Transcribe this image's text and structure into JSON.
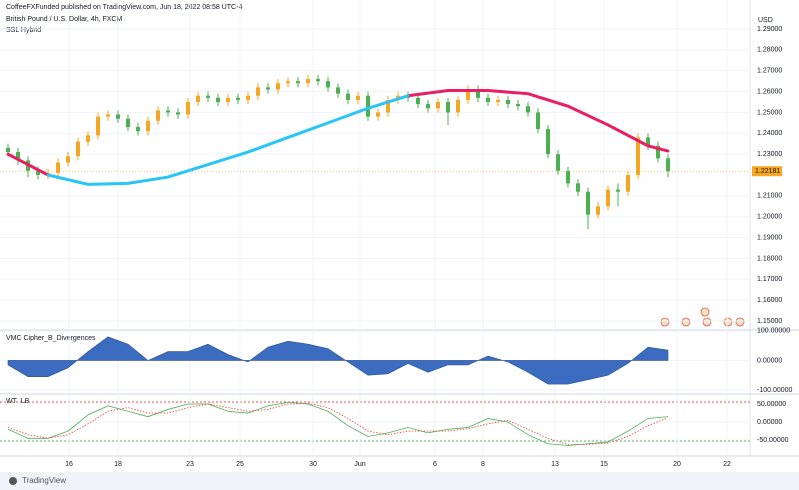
{
  "chart_data": {
    "type": "candlestick",
    "header": "CoffeeFXFunded published on TradingView.com, Jun 18, 2022 08:58 UTC-4",
    "title": "British Pound / U.S. Dollar, 4h, FXCM",
    "subtitle": "SSL Hybrid",
    "currency": "USD",
    "brand": "TradingView",
    "up_color": "#f5a623",
    "down_color": "#4caf50",
    "grid": true,
    "xlim": [
      0,
      75
    ],
    "ylim": [
      1.145,
      1.295
    ],
    "xticks": [
      {
        "value": 6.9,
        "label": "16"
      },
      {
        "value": 11.8,
        "label": "18"
      },
      {
        "value": 19.0,
        "label": "23"
      },
      {
        "value": 24.0,
        "label": "25"
      },
      {
        "value": 31.3,
        "label": "30"
      },
      {
        "value": 36.0,
        "label": "Jun"
      },
      {
        "value": 43.5,
        "label": "6"
      },
      {
        "value": 48.3,
        "label": "8"
      },
      {
        "value": 55.5,
        "label": "13"
      },
      {
        "value": 60.4,
        "label": "15"
      },
      {
        "value": 67.7,
        "label": "20"
      },
      {
        "value": 72.7,
        "label": "22"
      }
    ],
    "yticks": [
      {
        "value": 1.15,
        "label": "1.15000"
      },
      {
        "value": 1.16,
        "label": "1.16000"
      },
      {
        "value": 1.17,
        "label": "1.17000"
      },
      {
        "value": 1.18,
        "label": "1.18000"
      },
      {
        "value": 1.19,
        "label": "1.19000"
      },
      {
        "value": 1.2,
        "label": "1.20000"
      },
      {
        "value": 1.21,
        "label": "1.21000"
      },
      {
        "value": 1.23,
        "label": "1.23000"
      },
      {
        "value": 1.24,
        "label": "1.24000"
      },
      {
        "value": 1.25,
        "label": "1.25000"
      },
      {
        "value": 1.26,
        "label": "1.26000"
      },
      {
        "value": 1.27,
        "label": "1.27000"
      },
      {
        "value": 1.28,
        "label": "1.28000"
      },
      {
        "value": 1.29,
        "label": "1.29000"
      }
    ],
    "x": [
      0.8,
      1.8,
      2.8,
      3.8,
      4.8,
      5.8,
      6.8,
      7.8,
      8.8,
      9.8,
      10.8,
      11.8,
      12.8,
      13.8,
      14.8,
      15.8,
      16.8,
      17.8,
      18.8,
      19.8,
      20.8,
      21.8,
      22.8,
      23.8,
      24.8,
      25.8,
      26.8,
      27.8,
      28.8,
      29.8,
      30.8,
      31.8,
      32.8,
      33.8,
      34.8,
      35.8,
      36.8,
      37.8,
      38.8,
      39.8,
      40.8,
      41.8,
      42.8,
      43.8,
      44.8,
      45.8,
      46.8,
      47.8,
      48.8,
      49.8,
      50.8,
      51.8,
      52.8,
      53.8,
      54.8,
      55.8,
      56.8,
      57.8,
      58.8,
      59.8,
      60.8,
      61.8,
      62.8,
      63.8,
      64.8,
      65.8,
      66.8
    ],
    "open": [
      1.233,
      1.231,
      1.227,
      1.222,
      1.22,
      1.221,
      1.226,
      1.229,
      1.236,
      1.239,
      1.248,
      1.249,
      1.247,
      1.243,
      1.241,
      1.246,
      1.251,
      1.25,
      1.249,
      1.255,
      1.258,
      1.257,
      1.255,
      1.257,
      1.256,
      1.258,
      1.262,
      1.261,
      1.264,
      1.265,
      1.264,
      1.266,
      1.265,
      1.262,
      1.259,
      1.256,
      1.258,
      1.248,
      1.25,
      1.256,
      1.258,
      1.257,
      1.254,
      1.252,
      1.255,
      1.25,
      1.256,
      1.261,
      1.257,
      1.255,
      1.256,
      1.254,
      1.253,
      1.25,
      1.242,
      1.23,
      1.222,
      1.216,
      1.212,
      1.201,
      1.205,
      1.213,
      1.212,
      1.22,
      1.238,
      1.234,
      1.228
    ],
    "high": [
      1.235,
      1.233,
      1.229,
      1.224,
      1.223,
      1.228,
      1.231,
      1.238,
      1.241,
      1.25,
      1.251,
      1.251,
      1.249,
      1.245,
      1.248,
      1.253,
      1.253,
      1.252,
      1.257,
      1.26,
      1.26,
      1.259,
      1.259,
      1.259,
      1.26,
      1.264,
      1.264,
      1.266,
      1.267,
      1.267,
      1.268,
      1.268,
      1.267,
      1.264,
      1.261,
      1.26,
      1.26,
      1.252,
      1.258,
      1.26,
      1.26,
      1.259,
      1.256,
      1.257,
      1.257,
      1.258,
      1.263,
      1.263,
      1.259,
      1.258,
      1.258,
      1.256,
      1.255,
      1.252,
      1.244,
      1.232,
      1.224,
      1.218,
      1.214,
      1.207,
      1.215,
      1.216,
      1.222,
      1.24,
      1.24,
      1.236,
      1.23
    ],
    "low": [
      1.229,
      1.225,
      1.219,
      1.218,
      1.218,
      1.219,
      1.224,
      1.227,
      1.234,
      1.237,
      1.246,
      1.245,
      1.241,
      1.239,
      1.239,
      1.244,
      1.248,
      1.247,
      1.247,
      1.253,
      1.255,
      1.253,
      1.253,
      1.254,
      1.254,
      1.256,
      1.259,
      1.259,
      1.262,
      1.262,
      1.262,
      1.263,
      1.26,
      1.257,
      1.254,
      1.254,
      1.246,
      1.246,
      1.248,
      1.254,
      1.255,
      1.252,
      1.25,
      1.25,
      1.244,
      1.248,
      1.254,
      1.255,
      1.253,
      1.253,
      1.252,
      1.251,
      1.248,
      1.24,
      1.228,
      1.22,
      1.214,
      1.21,
      1.194,
      1.199,
      1.203,
      1.205,
      1.21,
      1.218,
      1.232,
      1.226,
      1.219
    ],
    "close": [
      1.231,
      1.227,
      1.222,
      1.22,
      1.221,
      1.226,
      1.229,
      1.236,
      1.239,
      1.248,
      1.249,
      1.247,
      1.243,
      1.241,
      1.246,
      1.251,
      1.25,
      1.249,
      1.255,
      1.258,
      1.257,
      1.255,
      1.257,
      1.256,
      1.258,
      1.262,
      1.261,
      1.264,
      1.265,
      1.264,
      1.266,
      1.265,
      1.262,
      1.259,
      1.256,
      1.258,
      1.248,
      1.25,
      1.256,
      1.258,
      1.257,
      1.254,
      1.252,
      1.255,
      1.25,
      1.256,
      1.261,
      1.257,
      1.255,
      1.256,
      1.254,
      1.253,
      1.25,
      1.242,
      1.23,
      1.222,
      1.216,
      1.212,
      1.201,
      1.205,
      1.213,
      1.212,
      1.22,
      1.238,
      1.234,
      1.228,
      1.22181
    ],
    "last_label": "1.22181",
    "ssl": {
      "x": [
        0.8,
        4.8,
        8.8,
        12.8,
        16.8,
        20.8,
        24.8,
        28.8,
        32.8,
        36.8,
        40.8,
        44.8,
        48.8,
        52.8,
        56.8,
        60.8,
        64.8,
        66.8
      ],
      "series": [
        {
          "color": "#e91e63",
          "values": [
            1.23,
            1.22,
            null,
            null,
            null,
            null,
            null,
            null,
            null,
            null,
            1.258,
            1.2605,
            1.2605,
            1.259,
            1.253,
            1.244,
            1.234,
            1.2315
          ]
        },
        {
          "color": "#29c5f6",
          "values": [
            null,
            1.22,
            1.2155,
            1.216,
            1.219,
            1.225,
            1.231,
            1.238,
            1.245,
            1.252,
            1.258,
            null,
            null,
            null,
            null,
            null,
            null,
            null
          ]
        }
      ]
    },
    "vmc": {
      "title": "VMC Cipher_B_Divergences",
      "color": "#3b6cc0",
      "ylim": [
        -110,
        103
      ],
      "yticks": [
        {
          "value": 100,
          "label": "100.00000"
        },
        {
          "value": 0,
          "label": "0.00000"
        },
        {
          "value": -100,
          "label": "-100.00000"
        }
      ],
      "x": [
        0.8,
        2.8,
        4.8,
        6.8,
        8.8,
        10.8,
        12.8,
        14.8,
        16.8,
        18.8,
        20.8,
        22.8,
        24.8,
        26.8,
        28.8,
        30.8,
        32.8,
        34.8,
        36.8,
        38.8,
        40.8,
        42.8,
        44.8,
        46.8,
        48.8,
        50.8,
        52.8,
        54.8,
        56.8,
        58.8,
        60.8,
        62.8,
        64.8,
        66.8
      ],
      "values": [
        -15,
        -55,
        -55,
        -25,
        30,
        80,
        55,
        0,
        30,
        30,
        55,
        20,
        -5,
        45,
        65,
        55,
        40,
        -5,
        -50,
        -45,
        -10,
        -40,
        -15,
        -15,
        15,
        -5,
        -40,
        -80,
        -80,
        -65,
        -50,
        -10,
        45,
        35
      ]
    },
    "wt": {
      "title": "WT_LB",
      "ylim": [
        -94,
        75
      ],
      "yticks": [
        {
          "value": 50,
          "label": "50.00000"
        },
        {
          "value": 0,
          "label": "0.00000"
        },
        {
          "value": -50,
          "label": "-50.00000"
        }
      ],
      "x": [
        0.8,
        2.8,
        4.8,
        6.8,
        8.8,
        10.8,
        12.8,
        14.8,
        16.8,
        18.8,
        20.8,
        22.8,
        24.8,
        26.8,
        28.8,
        30.8,
        32.8,
        34.8,
        36.8,
        38.8,
        40.8,
        42.8,
        44.8,
        46.8,
        48.8,
        50.8,
        52.8,
        54.8,
        56.8,
        58.8,
        60.8,
        62.8,
        64.8,
        66.8
      ],
      "series": [
        {
          "color": "#4caf50",
          "values": [
            -20,
            -45,
            -45,
            -25,
            20,
            45,
            30,
            15,
            35,
            50,
            50,
            30,
            25,
            45,
            55,
            50,
            30,
            -10,
            -40,
            -30,
            -15,
            -30,
            -20,
            -15,
            10,
            0,
            -35,
            -60,
            -65,
            -60,
            -55,
            -25,
            10,
            15
          ]
        },
        {
          "color": "#e5534b",
          "values": [
            -15,
            -35,
            -45,
            -35,
            -5,
            30,
            40,
            25,
            25,
            40,
            50,
            40,
            30,
            35,
            50,
            52,
            40,
            10,
            -25,
            -35,
            -25,
            -25,
            -25,
            -18,
            -5,
            5,
            -20,
            -45,
            -62,
            -62,
            -58,
            -40,
            -10,
            12
          ]
        }
      ]
    }
  }
}
